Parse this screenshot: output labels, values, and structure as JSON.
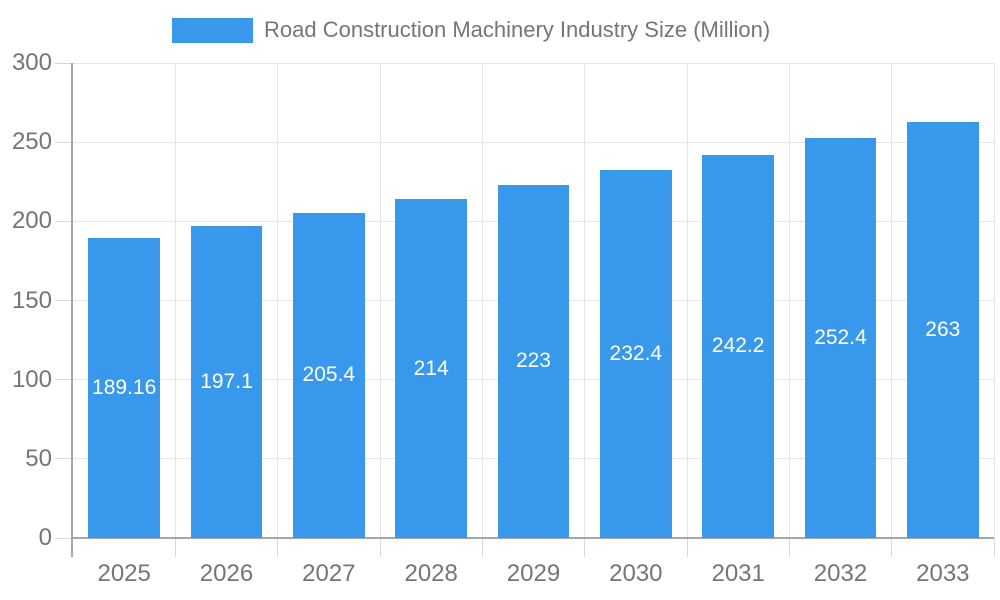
{
  "chart_data": {
    "type": "bar",
    "title": "Road Construction Machinery Industry Size (Million)",
    "categories": [
      "2025",
      "2026",
      "2027",
      "2028",
      "2029",
      "2030",
      "2031",
      "2032",
      "2033"
    ],
    "values": [
      189.16,
      197.1,
      205.4,
      214,
      223,
      232.4,
      242.2,
      252.4,
      263
    ],
    "value_labels": [
      "189.16",
      "197.1",
      "205.4",
      "214",
      "223",
      "232.4",
      "242.2",
      "252.4",
      "263"
    ],
    "xlabel": "",
    "ylabel": "",
    "ylim": [
      0,
      300
    ],
    "yticks": [
      0,
      50,
      100,
      150,
      200,
      250,
      300
    ],
    "ytick_labels": [
      "0",
      "50",
      "100",
      "150",
      "200",
      "250",
      "300"
    ],
    "grid": true,
    "legend_position": "top",
    "value_label_position": "center-of-bar",
    "colors": {
      "bar": "#3899EC",
      "axis_line": "#A6A6A6",
      "grid_line": "#E6E6E6",
      "tick_line": "#D8D8D8",
      "label_text": "#757575",
      "value_text": "#FFFFFF",
      "background": "#FFFFFF"
    }
  }
}
